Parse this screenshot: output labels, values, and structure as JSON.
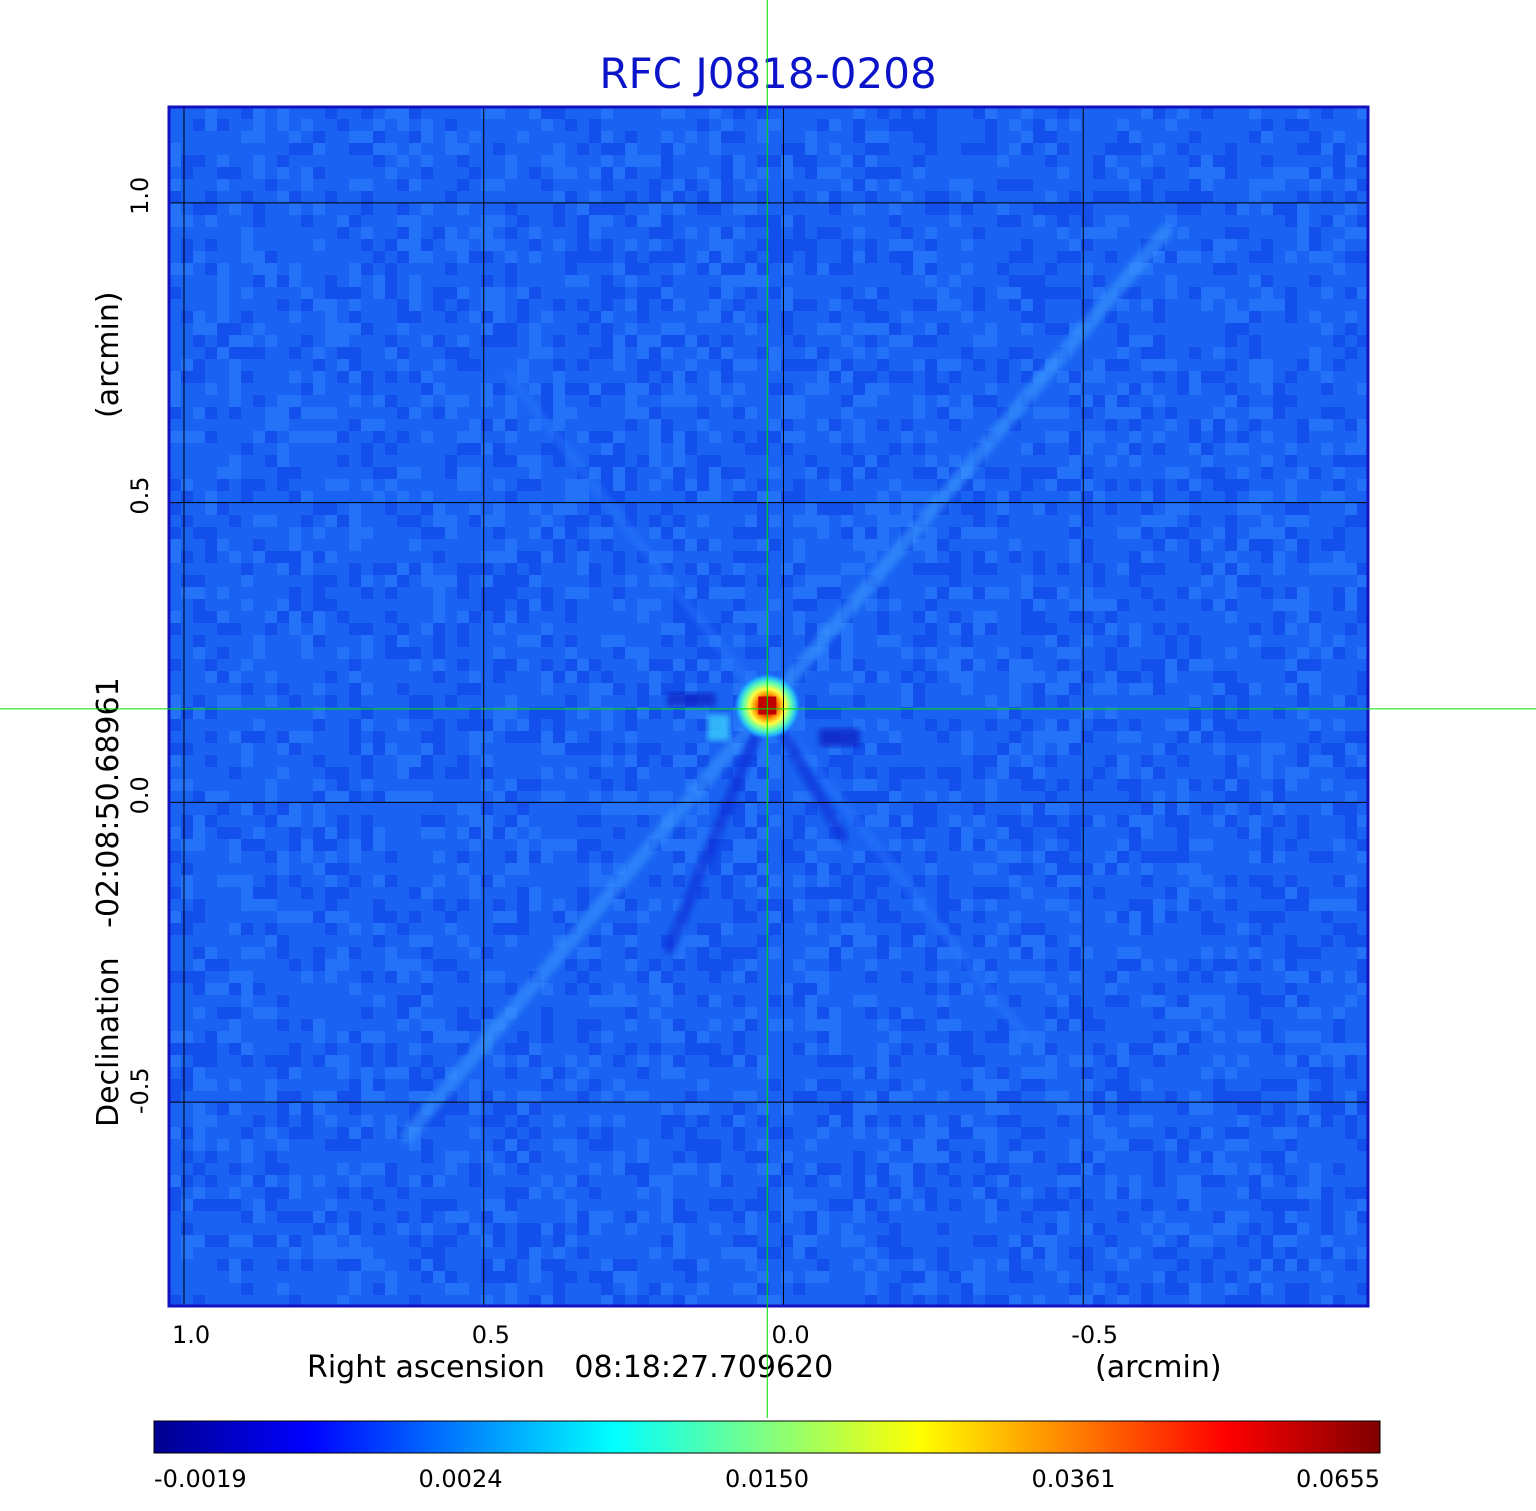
{
  "chart_data": {
    "type": "heatmap",
    "title": "RFC J0818-0208",
    "xlabel": {
      "prefix": "Right ascension",
      "center": "08:18:27.709620",
      "unit": "(arcmin)"
    },
    "ylabel": {
      "prefix": "Declination",
      "center": "-02:08:50.68961",
      "unit": "(arcmin)"
    },
    "x_ticks": [
      {
        "value": 1.0,
        "label": "1.0"
      },
      {
        "value": 0.5,
        "label": "0.5"
      },
      {
        "value": 0.0,
        "label": "0.0"
      },
      {
        "value": -0.5,
        "label": "-0.5"
      }
    ],
    "y_ticks": [
      {
        "value": 1.0,
        "label": "1.0"
      },
      {
        "value": 0.5,
        "label": "0.5"
      },
      {
        "value": 0.0,
        "label": "0.0"
      },
      {
        "value": -0.5,
        "label": "-0.5"
      }
    ],
    "xlim": [
      1.025,
      -0.975
    ],
    "ylim": [
      -0.84,
      1.16
    ],
    "grid": true,
    "crosshair": {
      "x": 0.027,
      "y": 0.156
    },
    "peak": {
      "x": 0.027,
      "y": 0.16,
      "value": 0.0655
    },
    "colorbar": {
      "labels": [
        "-0.0019",
        "0.0024",
        "0.0150",
        "0.0361",
        "0.0655"
      ],
      "colormap": [
        "#00008f",
        "#0000ff",
        "#0080ff",
        "#00ffff",
        "#80ff80",
        "#ffff00",
        "#ff8000",
        "#ff0000",
        "#800000"
      ]
    }
  },
  "colors": {
    "title": "#0b14c8",
    "frame": "#1212c0",
    "background_field": "#1a63f2",
    "grid": "#000000",
    "crosshair": "#00e000"
  }
}
